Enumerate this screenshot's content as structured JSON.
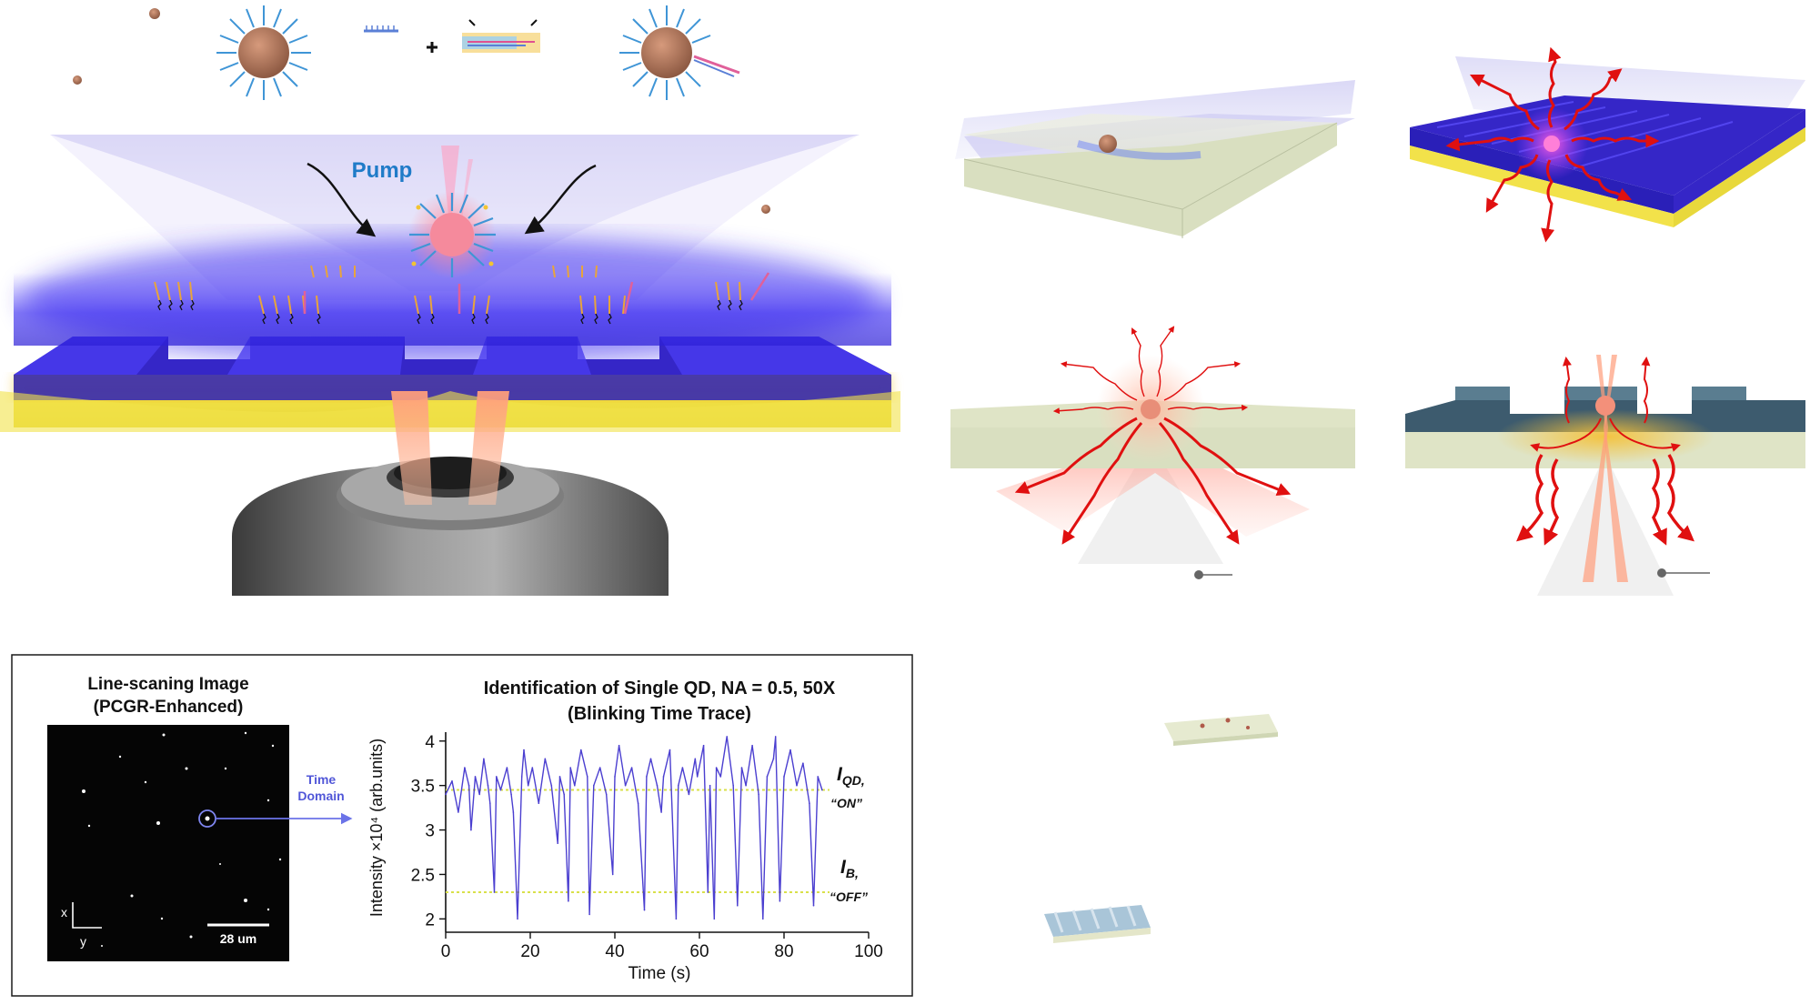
{
  "schematic": {
    "pump_label": "Pump"
  },
  "panel": {
    "image": {
      "title_line1": "Line-scaning Image",
      "title_line2": "(PCGR-Enhanced)",
      "scale_bar": "28 um",
      "axis_x": "x",
      "axis_y": "y"
    },
    "arrow_label_line1": "Time",
    "arrow_label_line2": "Domain",
    "levels": {
      "qd_main": "I",
      "qd_sub": "QD,",
      "qd_state": "“ON”",
      "b_main": "I",
      "b_sub": "B,",
      "b_state": "“OFF”"
    }
  },
  "chart_data": {
    "type": "line",
    "title": "Identification of Single QD, NA = 0.5, 50X",
    "subtitle": "(Blinking Time Trace)",
    "xlabel": "Time (s)",
    "ylabel": "Intensity ×10⁴  (arb.units)",
    "xlim": [
      0,
      100
    ],
    "ylim": [
      1.85,
      4.1
    ],
    "xticks": [
      "0",
      "20",
      "40",
      "60",
      "80",
      "100"
    ],
    "yticks": [
      "2",
      "2.5",
      "3",
      "3.5",
      "4"
    ],
    "on_level": 3.45,
    "off_level": 2.3,
    "series": [
      {
        "color": "#4b3fd0",
        "x": [
          0,
          1.5,
          3,
          4.5,
          5.5,
          6,
          7,
          8,
          9,
          10,
          10.5,
          11.5,
          12,
          13,
          14.5,
          15.5,
          16,
          17,
          18,
          18.5,
          19.5,
          20.5,
          22,
          23.5,
          25,
          26.5,
          27,
          28,
          29,
          29.5,
          30.5,
          32,
          33.5,
          34,
          35,
          36.5,
          38,
          39.5,
          40,
          41,
          42.5,
          44,
          45.5,
          47,
          47.5,
          48.5,
          50,
          51,
          51.5,
          53,
          54.5,
          55,
          56,
          57.5,
          59,
          59.5,
          61,
          62,
          62.5,
          63.5,
          64,
          65,
          66.5,
          68,
          69,
          70,
          71,
          72.5,
          74,
          75,
          76,
          77.5,
          78,
          79,
          80,
          81.5,
          83,
          84.5,
          86,
          87,
          88,
          89
        ],
        "y": [
          3.4,
          3.55,
          3.2,
          3.7,
          3.5,
          3.0,
          3.6,
          3.4,
          3.8,
          3.5,
          3.3,
          2.3,
          3.6,
          3.45,
          3.7,
          3.4,
          3.2,
          2.0,
          3.6,
          3.9,
          3.5,
          3.7,
          3.3,
          3.8,
          3.5,
          2.85,
          3.6,
          3.4,
          2.2,
          3.7,
          3.5,
          3.9,
          3.6,
          2.05,
          3.5,
          3.7,
          3.4,
          2.5,
          3.6,
          3.95,
          3.5,
          3.7,
          3.3,
          2.1,
          3.6,
          3.8,
          3.5,
          3.2,
          3.6,
          3.9,
          2.0,
          3.5,
          3.7,
          3.4,
          3.8,
          3.6,
          3.95,
          2.3,
          3.5,
          2.0,
          3.7,
          3.6,
          4.05,
          3.5,
          2.15,
          3.7,
          3.5,
          3.95,
          3.4,
          2.0,
          3.6,
          3.8,
          4.05,
          2.2,
          3.6,
          3.9,
          3.5,
          3.75,
          3.3,
          2.15,
          3.6,
          3.45
        ]
      }
    ]
  }
}
